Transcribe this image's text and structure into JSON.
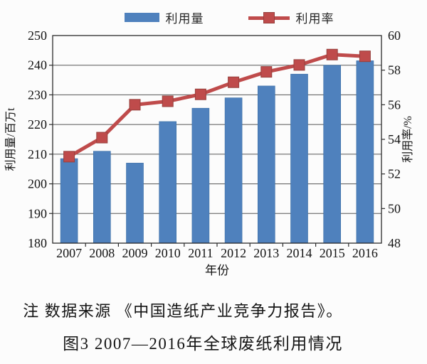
{
  "chart_data": {
    "type": "bar+line combo",
    "categories": [
      "2007",
      "2008",
      "2009",
      "2010",
      "2011",
      "2012",
      "2013",
      "2014",
      "2015",
      "2016"
    ],
    "series": [
      {
        "name": "利用量",
        "type": "bar",
        "axis": "left",
        "values": [
          208.5,
          211,
          207,
          221,
          225.5,
          229,
          233,
          237,
          240,
          241.5
        ],
        "color": "#4f81bd"
      },
      {
        "name": "利用率",
        "type": "line",
        "axis": "right",
        "marker": "square",
        "values": [
          53.0,
          54.1,
          56.0,
          56.2,
          56.6,
          57.3,
          57.9,
          58.3,
          58.9,
          58.8
        ],
        "color": "#bf4b4b"
      }
    ],
    "left_axis": {
      "label": "利用量/百万t",
      "min": 180,
      "max": 250,
      "step": 10
    },
    "right_axis": {
      "label": "利用率/%",
      "min": 48,
      "max": 60,
      "step": 2
    },
    "xlabel": "年份",
    "grid": true,
    "legend_position": "top"
  },
  "caption": {
    "note": "注 数据来源 《中国造纸产业竞争力报告》。",
    "figure": "图3 2007—2016年全球废纸利用情况"
  },
  "colors": {
    "bar": "#4f81bd",
    "bar_edge": "#3a6ea5",
    "line": "#bf4b4b",
    "marker_edge": "#96403d",
    "grid": "#565656",
    "frame": "#2b2b2b",
    "text": "#141414"
  }
}
